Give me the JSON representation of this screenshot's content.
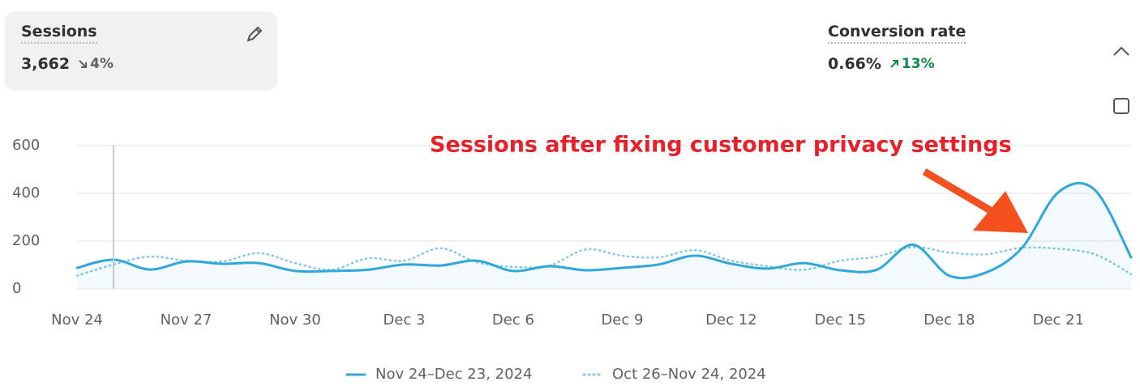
{
  "cards": [
    {
      "title": "Sessions",
      "value": "3,662",
      "change": "4%"
    },
    {
      "title": "Conversion rate",
      "value": "0.66%",
      "change": "13%"
    }
  ],
  "chart_data": {
    "type": "line",
    "categories": [
      "Nov 24",
      null,
      null,
      "Nov 27",
      null,
      null,
      "Nov 30",
      null,
      null,
      "Dec 3",
      null,
      null,
      "Dec 6",
      null,
      null,
      "Dec 9",
      null,
      null,
      "Dec 12",
      null,
      null,
      "Dec 15",
      null,
      null,
      "Dec 18",
      null,
      null,
      "Dec 21",
      null,
      null
    ],
    "series": [
      {
        "name": "Nov 24–Dec 23, 2024",
        "color": "#2fa7dc",
        "style": "solid",
        "values": [
          88,
          122,
          81,
          115,
          105,
          108,
          75,
          75,
          80,
          102,
          98,
          118,
          75,
          95,
          78,
          88,
          102,
          139,
          105,
          85,
          108,
          78,
          80,
          185,
          55,
          68,
          172,
          405,
          415,
          132
        ]
      },
      {
        "name": "Oct 26–Nov 24, 2024",
        "color": "#7cc6e8",
        "style": "dotted",
        "values": [
          55,
          102,
          135,
          118,
          115,
          150,
          108,
          80,
          128,
          118,
          170,
          112,
          92,
          98,
          165,
          139,
          132,
          162,
          118,
          95,
          80,
          118,
          135,
          175,
          152,
          145,
          172,
          168,
          145,
          62
        ]
      }
    ],
    "ylim": [
      0,
      600
    ],
    "yticks": [
      0,
      200,
      400,
      600
    ],
    "grid": true,
    "annotation": "Sessions after fixing customer privacy settings"
  }
}
